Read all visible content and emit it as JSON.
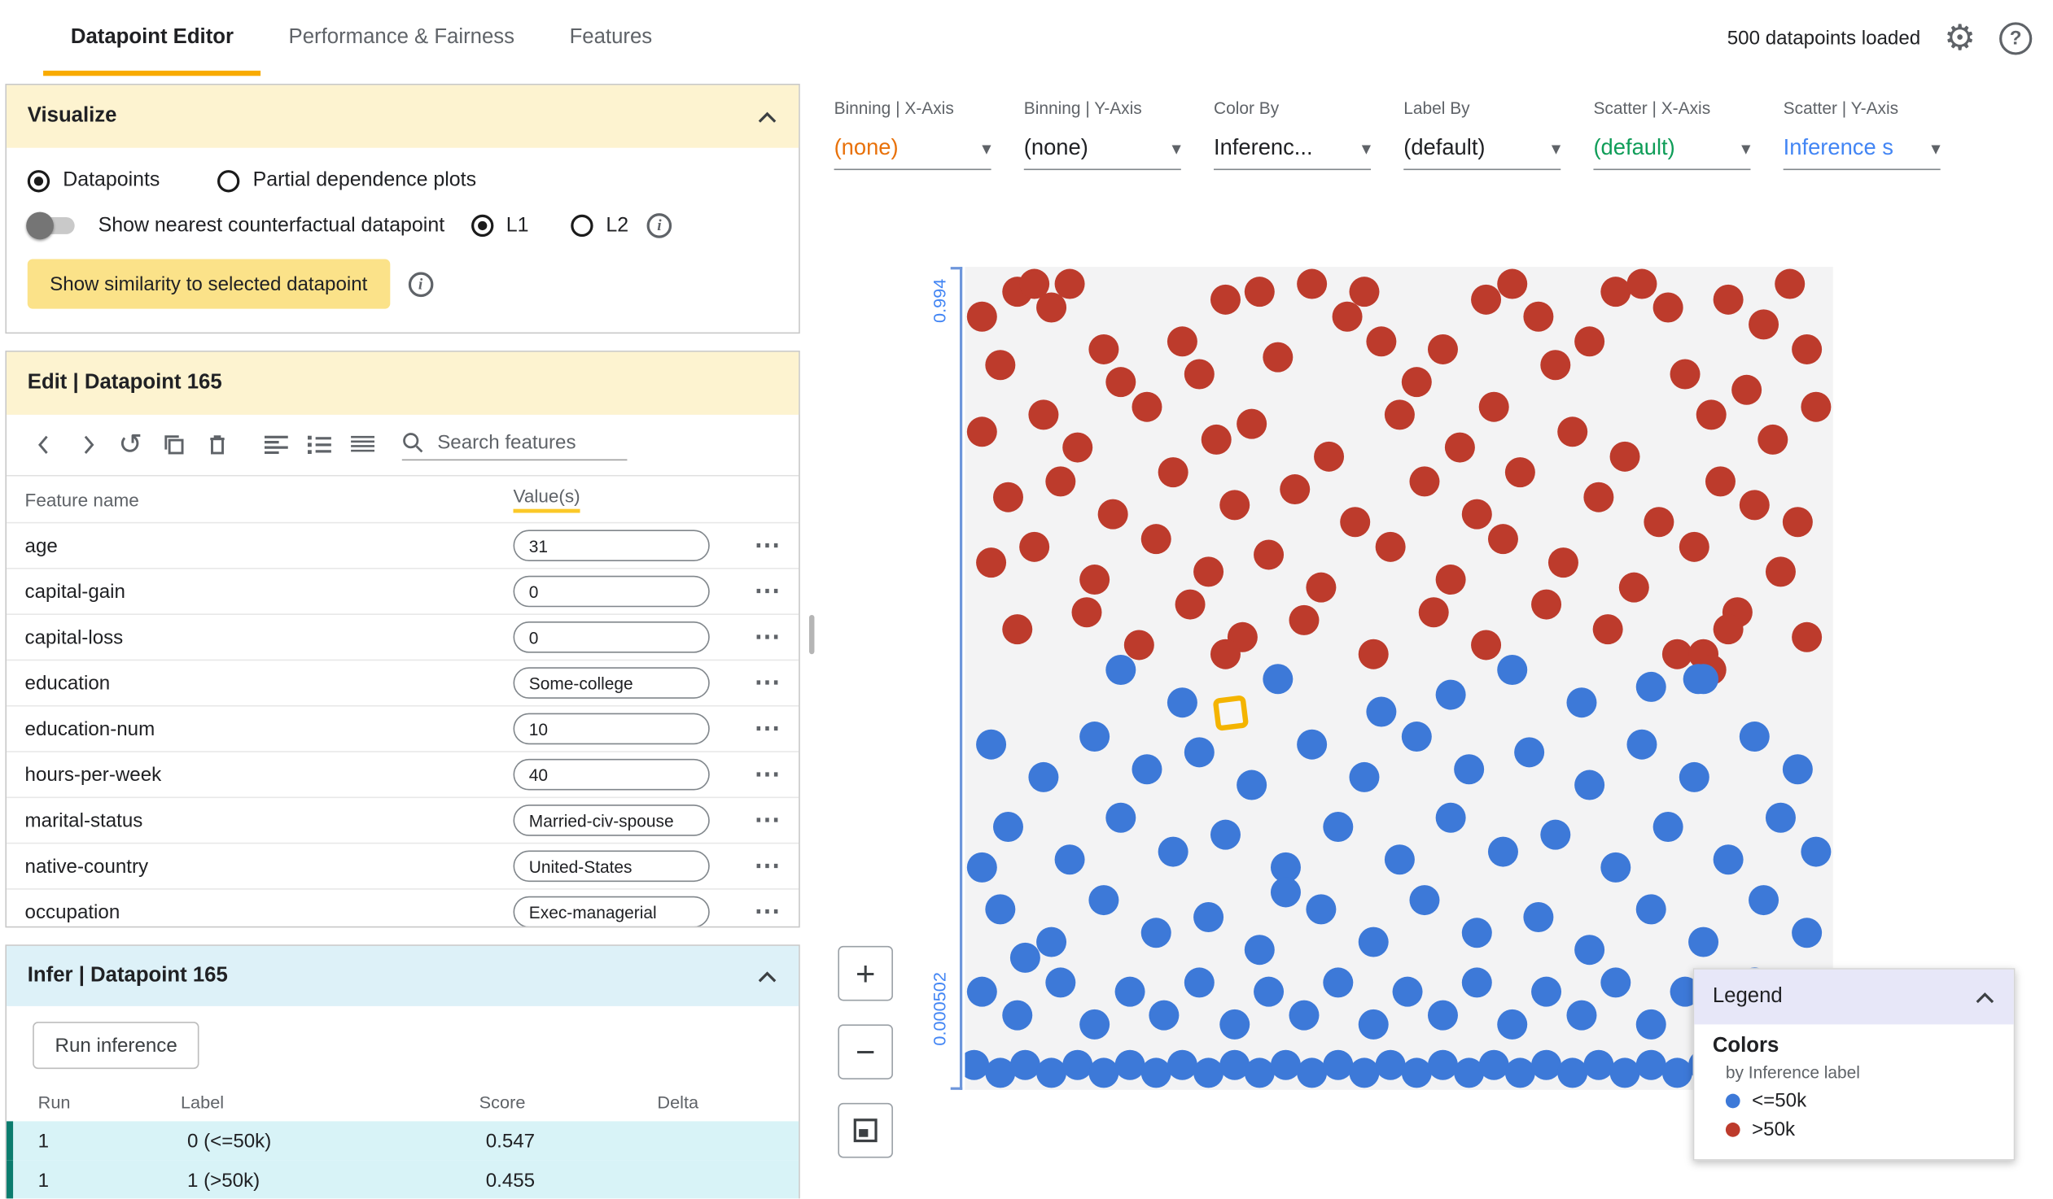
{
  "header": {
    "tabs": [
      {
        "label": "Datapoint Editor"
      },
      {
        "label": "Performance & Fairness"
      },
      {
        "label": "Features"
      }
    ],
    "status": "500 datapoints loaded"
  },
  "visualize": {
    "title": "Visualize",
    "mode_options": [
      {
        "label": "Datapoints",
        "selected": true
      },
      {
        "label": "Partial dependence plots",
        "selected": false
      }
    ],
    "counterfactual_toggle_label": "Show nearest counterfactual datapoint",
    "distance_options": [
      {
        "label": "L1",
        "selected": true
      },
      {
        "label": "L2",
        "selected": false
      }
    ],
    "similarity_button": "Show similarity to selected datapoint"
  },
  "edit": {
    "title": "Edit | Datapoint 165",
    "search_placeholder": "Search features",
    "columns": [
      "Feature name",
      "Value(s)"
    ],
    "features": [
      {
        "name": "age",
        "value": "31"
      },
      {
        "name": "capital-gain",
        "value": "0"
      },
      {
        "name": "capital-loss",
        "value": "0"
      },
      {
        "name": "education",
        "value": "Some-college"
      },
      {
        "name": "education-num",
        "value": "10"
      },
      {
        "name": "hours-per-week",
        "value": "40"
      },
      {
        "name": "marital-status",
        "value": "Married-civ-spouse"
      },
      {
        "name": "native-country",
        "value": "United-States"
      },
      {
        "name": "occupation",
        "value": "Exec-managerial"
      }
    ]
  },
  "infer": {
    "title": "Infer | Datapoint 165",
    "run_button": "Run inference",
    "columns": [
      "Run",
      "Label",
      "Score",
      "Delta"
    ],
    "rows": [
      {
        "run": "1",
        "label": "0 (<=50k)",
        "score": "0.547",
        "delta": ""
      },
      {
        "run": "1",
        "label": "1 (>50k)",
        "score": "0.455",
        "delta": ""
      }
    ]
  },
  "controls": [
    {
      "name": "binning-x-axis",
      "label": "Binning | X-Axis",
      "value": "(none)",
      "color": "#e8710a"
    },
    {
      "name": "binning-y-axis",
      "label": "Binning | Y-Axis",
      "value": "(none)",
      "color": "#202124"
    },
    {
      "name": "color-by",
      "label": "Color By",
      "value": "Inferenc...",
      "color": "#202124"
    },
    {
      "name": "label-by",
      "label": "Label By",
      "value": "(default)",
      "color": "#202124"
    },
    {
      "name": "scatter-x-axis",
      "label": "Scatter | X-Axis",
      "value": "(default)",
      "color": "#0f9d58"
    },
    {
      "name": "scatter-y-axis",
      "label": "Scatter | Y-Axis",
      "value": "Inference s",
      "color": "#4285f4"
    }
  ],
  "chart_data": {
    "type": "scatter",
    "y_axis_top_label": "0.994",
    "y_axis_bottom_label": "0.000502",
    "colors": {
      "blue": "#3d79d8",
      "red": "#bd3b2c"
    },
    "classes": {
      "0": "<=50k",
      "1": ">50k"
    },
    "selected_point": {
      "x": 30.6,
      "y": 54.2
    },
    "points": [
      [
        2,
        6,
        1
      ],
      [
        6,
        3,
        1
      ],
      [
        8,
        2,
        1
      ],
      [
        10,
        5,
        1
      ],
      [
        12,
        2,
        1
      ],
      [
        30,
        4,
        1
      ],
      [
        34,
        3,
        1
      ],
      [
        40,
        2,
        1
      ],
      [
        44,
        6,
        1
      ],
      [
        46,
        3,
        1
      ],
      [
        60,
        4,
        1
      ],
      [
        63,
        2,
        1
      ],
      [
        66,
        6,
        1
      ],
      [
        75,
        3,
        1
      ],
      [
        78,
        2,
        1
      ],
      [
        81,
        5,
        1
      ],
      [
        88,
        4,
        1
      ],
      [
        92,
        7,
        1
      ],
      [
        95,
        2,
        1
      ],
      [
        4,
        12,
        1
      ],
      [
        16,
        10,
        1
      ],
      [
        18,
        14,
        1
      ],
      [
        25,
        9,
        1
      ],
      [
        27,
        13,
        1
      ],
      [
        36,
        11,
        1
      ],
      [
        48,
        9,
        1
      ],
      [
        52,
        14,
        1
      ],
      [
        55,
        10,
        1
      ],
      [
        68,
        12,
        1
      ],
      [
        72,
        9,
        1
      ],
      [
        83,
        13,
        1
      ],
      [
        90,
        15,
        1
      ],
      [
        97,
        10,
        1
      ],
      [
        2,
        20,
        1
      ],
      [
        9,
        18,
        1
      ],
      [
        13,
        22,
        1
      ],
      [
        21,
        17,
        1
      ],
      [
        29,
        21,
        1
      ],
      [
        33,
        19,
        1
      ],
      [
        42,
        23,
        1
      ],
      [
        50,
        18,
        1
      ],
      [
        57,
        22,
        1
      ],
      [
        61,
        17,
        1
      ],
      [
        70,
        20,
        1
      ],
      [
        76,
        23,
        1
      ],
      [
        86,
        18,
        1
      ],
      [
        93,
        21,
        1
      ],
      [
        98,
        17,
        1
      ],
      [
        5,
        28,
        1
      ],
      [
        11,
        26,
        1
      ],
      [
        17,
        30,
        1
      ],
      [
        24,
        25,
        1
      ],
      [
        31,
        29,
        1
      ],
      [
        38,
        27,
        1
      ],
      [
        45,
        31,
        1
      ],
      [
        53,
        26,
        1
      ],
      [
        59,
        30,
        1
      ],
      [
        64,
        25,
        1
      ],
      [
        73,
        28,
        1
      ],
      [
        80,
        31,
        1
      ],
      [
        87,
        26,
        1
      ],
      [
        91,
        29,
        1
      ],
      [
        96,
        31,
        1
      ],
      [
        3,
        36,
        1
      ],
      [
        8,
        34,
        1
      ],
      [
        15,
        38,
        1
      ],
      [
        22,
        33,
        1
      ],
      [
        28,
        37,
        1
      ],
      [
        35,
        35,
        1
      ],
      [
        41,
        39,
        1
      ],
      [
        49,
        34,
        1
      ],
      [
        56,
        38,
        1
      ],
      [
        62,
        33,
        1
      ],
      [
        69,
        36,
        1
      ],
      [
        77,
        39,
        1
      ],
      [
        84,
        34,
        1
      ],
      [
        94,
        37,
        1
      ],
      [
        6,
        44,
        1
      ],
      [
        14,
        42,
        1
      ],
      [
        20,
        46,
        1
      ],
      [
        26,
        41,
        1
      ],
      [
        32,
        45,
        1
      ],
      [
        39,
        43,
        1
      ],
      [
        47,
        47,
        1
      ],
      [
        54,
        42,
        1
      ],
      [
        60,
        46,
        1
      ],
      [
        67,
        41,
        1
      ],
      [
        74,
        44,
        1
      ],
      [
        82,
        47,
        1
      ],
      [
        89,
        42,
        1
      ],
      [
        97,
        45,
        1
      ],
      [
        85,
        47,
        1
      ],
      [
        88,
        44,
        1
      ],
      [
        86,
        49,
        1
      ],
      [
        30,
        47,
        1
      ],
      [
        18,
        49,
        0
      ],
      [
        36,
        50,
        0
      ],
      [
        56,
        52,
        0
      ],
      [
        63,
        49,
        0
      ],
      [
        71,
        53,
        0
      ],
      [
        85,
        50,
        0
      ],
      [
        25,
        53,
        0
      ],
      [
        48,
        54,
        0
      ],
      [
        79,
        51,
        0
      ],
      [
        84.5,
        50,
        0
      ],
      [
        3,
        58,
        0
      ],
      [
        9,
        62,
        0
      ],
      [
        15,
        57,
        0
      ],
      [
        21,
        61,
        0
      ],
      [
        27,
        59,
        0
      ],
      [
        33,
        63,
        0
      ],
      [
        40,
        58,
        0
      ],
      [
        46,
        62,
        0
      ],
      [
        52,
        57,
        0
      ],
      [
        58,
        61,
        0
      ],
      [
        65,
        59,
        0
      ],
      [
        72,
        63,
        0
      ],
      [
        78,
        58,
        0
      ],
      [
        84,
        62,
        0
      ],
      [
        91,
        57,
        0
      ],
      [
        96,
        61,
        0
      ],
      [
        5,
        68,
        0
      ],
      [
        12,
        72,
        0
      ],
      [
        18,
        67,
        0
      ],
      [
        24,
        71,
        0
      ],
      [
        30,
        69,
        0
      ],
      [
        37,
        73,
        0
      ],
      [
        43,
        68,
        0
      ],
      [
        50,
        72,
        0
      ],
      [
        56,
        67,
        0
      ],
      [
        62,
        71,
        0
      ],
      [
        68,
        69,
        0
      ],
      [
        75,
        73,
        0
      ],
      [
        81,
        68,
        0
      ],
      [
        88,
        72,
        0
      ],
      [
        94,
        67,
        0
      ],
      [
        98,
        71,
        0
      ],
      [
        2,
        73,
        0
      ],
      [
        4,
        78,
        0
      ],
      [
        10,
        82,
        0
      ],
      [
        16,
        77,
        0
      ],
      [
        22,
        81,
        0
      ],
      [
        28,
        79,
        0
      ],
      [
        34,
        83,
        0
      ],
      [
        41,
        78,
        0
      ],
      [
        47,
        82,
        0
      ],
      [
        53,
        77,
        0
      ],
      [
        59,
        81,
        0
      ],
      [
        66,
        79,
        0
      ],
      [
        72,
        83,
        0
      ],
      [
        79,
        78,
        0
      ],
      [
        85,
        82,
        0
      ],
      [
        92,
        77,
        0
      ],
      [
        97,
        81,
        0
      ],
      [
        7,
        84,
        0
      ],
      [
        37,
        76,
        0
      ],
      [
        2,
        88,
        0
      ],
      [
        6,
        91,
        0
      ],
      [
        11,
        87,
        0
      ],
      [
        15,
        92,
        0
      ],
      [
        19,
        88,
        0
      ],
      [
        23,
        91,
        0
      ],
      [
        27,
        87,
        0
      ],
      [
        31,
        92,
        0
      ],
      [
        35,
        88,
        0
      ],
      [
        39,
        91,
        0
      ],
      [
        43,
        87,
        0
      ],
      [
        47,
        92,
        0
      ],
      [
        51,
        88,
        0
      ],
      [
        55,
        91,
        0
      ],
      [
        59,
        87,
        0
      ],
      [
        63,
        92,
        0
      ],
      [
        67,
        88,
        0
      ],
      [
        71,
        91,
        0
      ],
      [
        75,
        87,
        0
      ],
      [
        79,
        92,
        0
      ],
      [
        83,
        88,
        0
      ],
      [
        87,
        91,
        0
      ],
      [
        91,
        87,
        0
      ],
      [
        95,
        92,
        0
      ],
      [
        1,
        97,
        0
      ],
      [
        4,
        98,
        0
      ],
      [
        7,
        97,
        0
      ],
      [
        10,
        98,
        0
      ],
      [
        13,
        97,
        0
      ],
      [
        16,
        98,
        0
      ],
      [
        19,
        97,
        0
      ],
      [
        22,
        98,
        0
      ],
      [
        25,
        97,
        0
      ],
      [
        28,
        98,
        0
      ],
      [
        31,
        97,
        0
      ],
      [
        34,
        98,
        0
      ],
      [
        37,
        97,
        0
      ],
      [
        40,
        98,
        0
      ],
      [
        43,
        97,
        0
      ],
      [
        46,
        98,
        0
      ],
      [
        49,
        97,
        0
      ],
      [
        52,
        98,
        0
      ],
      [
        55,
        97,
        0
      ],
      [
        58,
        98,
        0
      ],
      [
        61,
        97,
        0
      ],
      [
        64,
        98,
        0
      ],
      [
        67,
        97,
        0
      ],
      [
        70,
        98,
        0
      ],
      [
        73,
        97,
        0
      ],
      [
        76,
        98,
        0
      ],
      [
        79,
        97,
        0
      ],
      [
        82,
        98,
        0
      ],
      [
        85,
        97,
        0
      ]
    ]
  },
  "legend": {
    "title": "Legend",
    "section": "Colors",
    "subtitle": "by Inference label",
    "entries": [
      {
        "label": "<=50k",
        "color": "#3d79d8"
      },
      {
        "label": ">50k",
        "color": "#bd3b2c"
      }
    ]
  },
  "zoom": {
    "plus": "+",
    "minus": "−"
  }
}
